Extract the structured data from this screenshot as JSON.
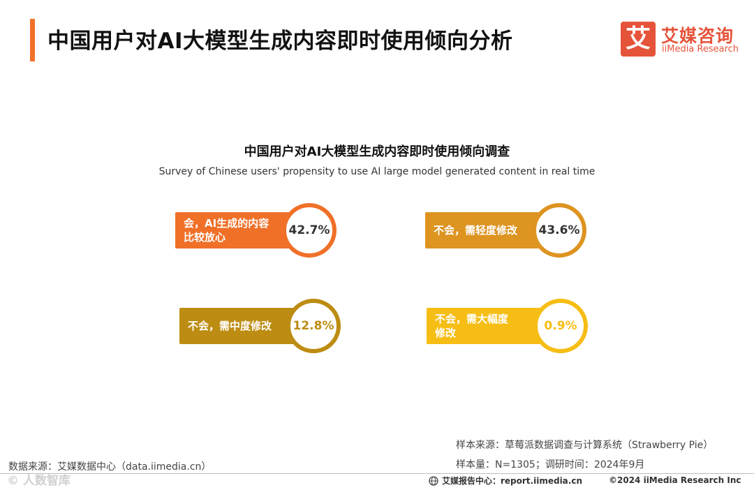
{
  "header": {
    "title": "中国用户对AI大模型生成内容即时使用倾向分析"
  },
  "logo": {
    "mark": "艾",
    "cn": "艾媒咨询",
    "en": "iiMedia Research"
  },
  "chart_data": {
    "type": "table",
    "title": "中国用户对AI大模型生成内容即时使用倾向调查",
    "subtitle": "Survey of Chinese users' propensity to use AI large model generated content in real time",
    "unit": "%",
    "items": [
      {
        "label": "会，AI生成的内容比较放心",
        "label_lines": [
          "会，AI生成的内容",
          "比较放心"
        ],
        "value": 42.7,
        "value_text": "42.7%",
        "color": "#f07028"
      },
      {
        "label": "不会，需轻度修改",
        "label_lines": [
          "不会，需轻度修改"
        ],
        "value": 43.6,
        "value_text": "43.6%",
        "color": "#dd9420"
      },
      {
        "label": "不会，需中度修改",
        "label_lines": [
          "不会，需中度修改"
        ],
        "value": 12.8,
        "value_text": "12.8%",
        "color": "#bd8c12"
      },
      {
        "label": "不会，需大幅度修改",
        "label_lines": [
          "不会，需大幅度",
          "修改"
        ],
        "value": 0.9,
        "value_text": "0.9%",
        "color": "#f6bd14"
      }
    ]
  },
  "footer": {
    "data_source": "数据来源：艾媒数据中心（data.iimedia.cn）",
    "sample_source": "样本来源：草莓派数据调查与计算系统（Strawberry Pie）",
    "sample_size": "样本量：N=1305；调研时间：2024年9月",
    "report_center": "艾媒报告中心：report.iimedia.cn",
    "copyright": "©2024  iiMedia Research  Inc",
    "watermark": "© 人数智库"
  }
}
